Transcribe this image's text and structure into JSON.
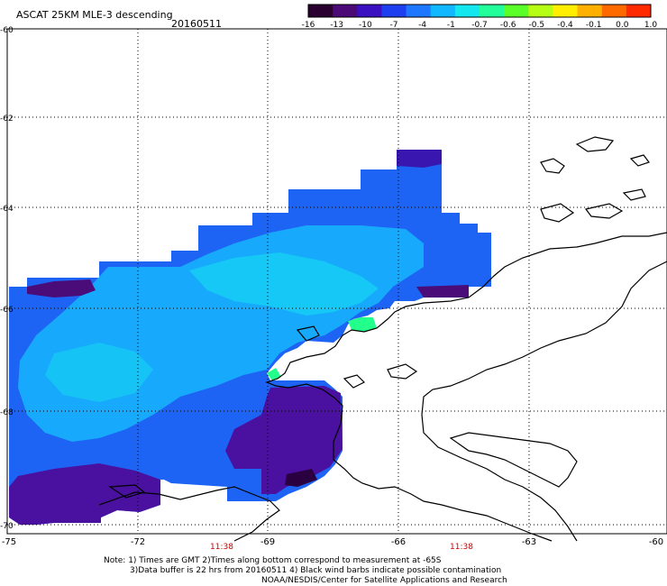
{
  "header": {
    "title": "ASCAT 25KM MLE-3 descending",
    "date": "20160511"
  },
  "colorbar": {
    "colors": [
      "#2a0030",
      "#4b0a75",
      "#3a10c0",
      "#1e3ff0",
      "#1e78ff",
      "#12b8ff",
      "#14e8ee",
      "#22ff9a",
      "#5aff2a",
      "#b6ff14",
      "#ffee00",
      "#ffb000",
      "#ff6a00",
      "#ff2a00"
    ],
    "labels": [
      "-16",
      "-13",
      "-10",
      "-7",
      "-4",
      "-1",
      "-0.7",
      "-0.6",
      "-0.5",
      "-0.4",
      "-0.1",
      "0.0",
      "1.0"
    ]
  },
  "lat_labels": [
    "-60",
    "-62",
    "-64",
    "-66",
    "-68",
    "-70"
  ],
  "lon_labels": [
    "-75",
    "-72",
    "-69",
    "-66",
    "-63",
    "-60"
  ],
  "time_labels": [
    "11:38",
    "11:38"
  ],
  "notes": {
    "line1": "Note: 1) Times are GMT 2)Times along bottom correspond to measurement at -65S",
    "line2": "3)Data buffer is 22 hrs from 20160511 4) Black wind barbs indicate possible contamination",
    "line3": "NOAA/NESDIS/Center for Satellite Applications and Research"
  },
  "colors": {
    "time_label": "#cc0000",
    "coastline": "#000000",
    "grid": "#000000"
  }
}
